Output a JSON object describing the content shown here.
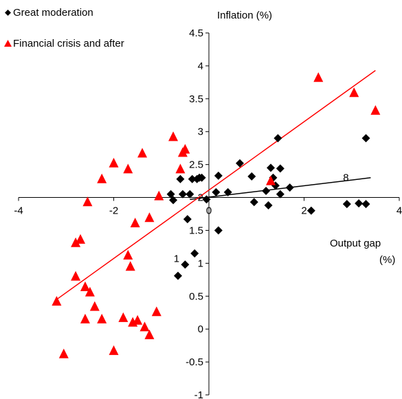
{
  "chart_data": {
    "type": "scatter",
    "title": "",
    "ylabel": "Inflation (%)",
    "xlabel_lines": [
      "Output gap",
      "(%)"
    ],
    "xlim": [
      -4,
      4
    ],
    "ylim": [
      -1,
      4.5
    ],
    "x_ticks": [
      -4,
      -2,
      0,
      2,
      4
    ],
    "x_tick_labels": [
      "-4",
      "-2",
      "0",
      "2",
      "4"
    ],
    "y_ticks": [
      -1,
      -0.5,
      0,
      0.5,
      1,
      1.5,
      2,
      2.5,
      3,
      3.5,
      4,
      4.5
    ],
    "y_tick_labels": [
      "-1",
      "-0.5",
      "0",
      "0.5",
      "1",
      "1.5",
      "2",
      "2.5",
      "3",
      "3.5",
      "4",
      "4.5"
    ],
    "grid": false,
    "legend_position": "top-left",
    "series": [
      {
        "name": "Great moderation",
        "marker": "diamond",
        "color": "#000000",
        "trend_color": "#000000",
        "trendline": {
          "x1": -0.4,
          "y1": 1.97,
          "x2": 3.4,
          "y2": 2.3
        },
        "points": [
          [
            -0.8,
            2.05
          ],
          [
            -0.75,
            1.96
          ],
          [
            -0.6,
            2.28
          ],
          [
            -0.55,
            2.05
          ],
          [
            -0.45,
            1.67
          ],
          [
            -0.4,
            2.05
          ],
          [
            -0.35,
            2.28
          ],
          [
            -0.25,
            2.28
          ],
          [
            -0.2,
            2.3
          ],
          [
            -0.15,
            2.3
          ],
          [
            -0.05,
            1.97
          ],
          [
            0.15,
            2.08
          ],
          [
            0.2,
            2.33
          ],
          [
            0.2,
            1.5
          ],
          [
            0.4,
            2.08
          ],
          [
            0.65,
            2.52
          ],
          [
            0.9,
            2.32
          ],
          [
            0.95,
            1.93
          ],
          [
            1.2,
            2.1
          ],
          [
            1.25,
            1.88
          ],
          [
            1.3,
            2.45
          ],
          [
            1.35,
            2.3
          ],
          [
            1.4,
            2.18
          ],
          [
            1.45,
            2.9
          ],
          [
            1.5,
            2.44
          ],
          [
            1.5,
            2.05
          ],
          [
            1.7,
            2.15
          ],
          [
            2.15,
            1.8
          ],
          [
            2.9,
            1.9
          ],
          [
            3.15,
            1.91
          ],
          [
            3.3,
            1.9
          ],
          [
            3.3,
            2.9
          ],
          [
            -0.65,
            0.81
          ],
          [
            -0.5,
            0.98
          ],
          [
            -0.3,
            1.15
          ]
        ]
      },
      {
        "name": "Financial crisis and after",
        "marker": "triangle",
        "color": "#ff0000",
        "trend_color": "#ff0000",
        "trendline": {
          "x1": -3.2,
          "y1": 0.45,
          "x2": 3.5,
          "y2": 3.93
        },
        "points": [
          [
            -3.2,
            0.43
          ],
          [
            -3.05,
            -0.37
          ],
          [
            -2.8,
            0.81
          ],
          [
            -2.8,
            1.32
          ],
          [
            -2.7,
            1.37
          ],
          [
            -2.6,
            0.65
          ],
          [
            -2.6,
            0.16
          ],
          [
            -2.55,
            1.94
          ],
          [
            -2.5,
            0.57
          ],
          [
            -2.4,
            0.35
          ],
          [
            -2.25,
            2.29
          ],
          [
            -2.25,
            0.16
          ],
          [
            -2.0,
            2.53
          ],
          [
            -2.0,
            -0.32
          ],
          [
            -1.8,
            0.18
          ],
          [
            -1.7,
            2.44
          ],
          [
            -1.7,
            1.13
          ],
          [
            -1.65,
            0.96
          ],
          [
            -1.6,
            0.11
          ],
          [
            -1.55,
            1.62
          ],
          [
            -1.5,
            0.14
          ],
          [
            -1.4,
            2.68
          ],
          [
            -1.35,
            0.04
          ],
          [
            -1.25,
            1.7
          ],
          [
            -1.25,
            -0.08
          ],
          [
            -1.1,
            0.27
          ],
          [
            -1.05,
            2.03
          ],
          [
            -0.75,
            2.93
          ],
          [
            -0.6,
            2.44
          ],
          [
            -0.55,
            2.69
          ],
          [
            -0.5,
            2.74
          ],
          [
            1.3,
            2.26
          ],
          [
            2.3,
            3.83
          ],
          [
            3.05,
            3.6
          ],
          [
            3.5,
            3.33
          ]
        ]
      }
    ],
    "annotations": [
      {
        "text": "8",
        "x": 2.88,
        "y": 2.25
      },
      {
        "text": "1",
        "x": -0.68,
        "y": 1.02
      }
    ]
  }
}
